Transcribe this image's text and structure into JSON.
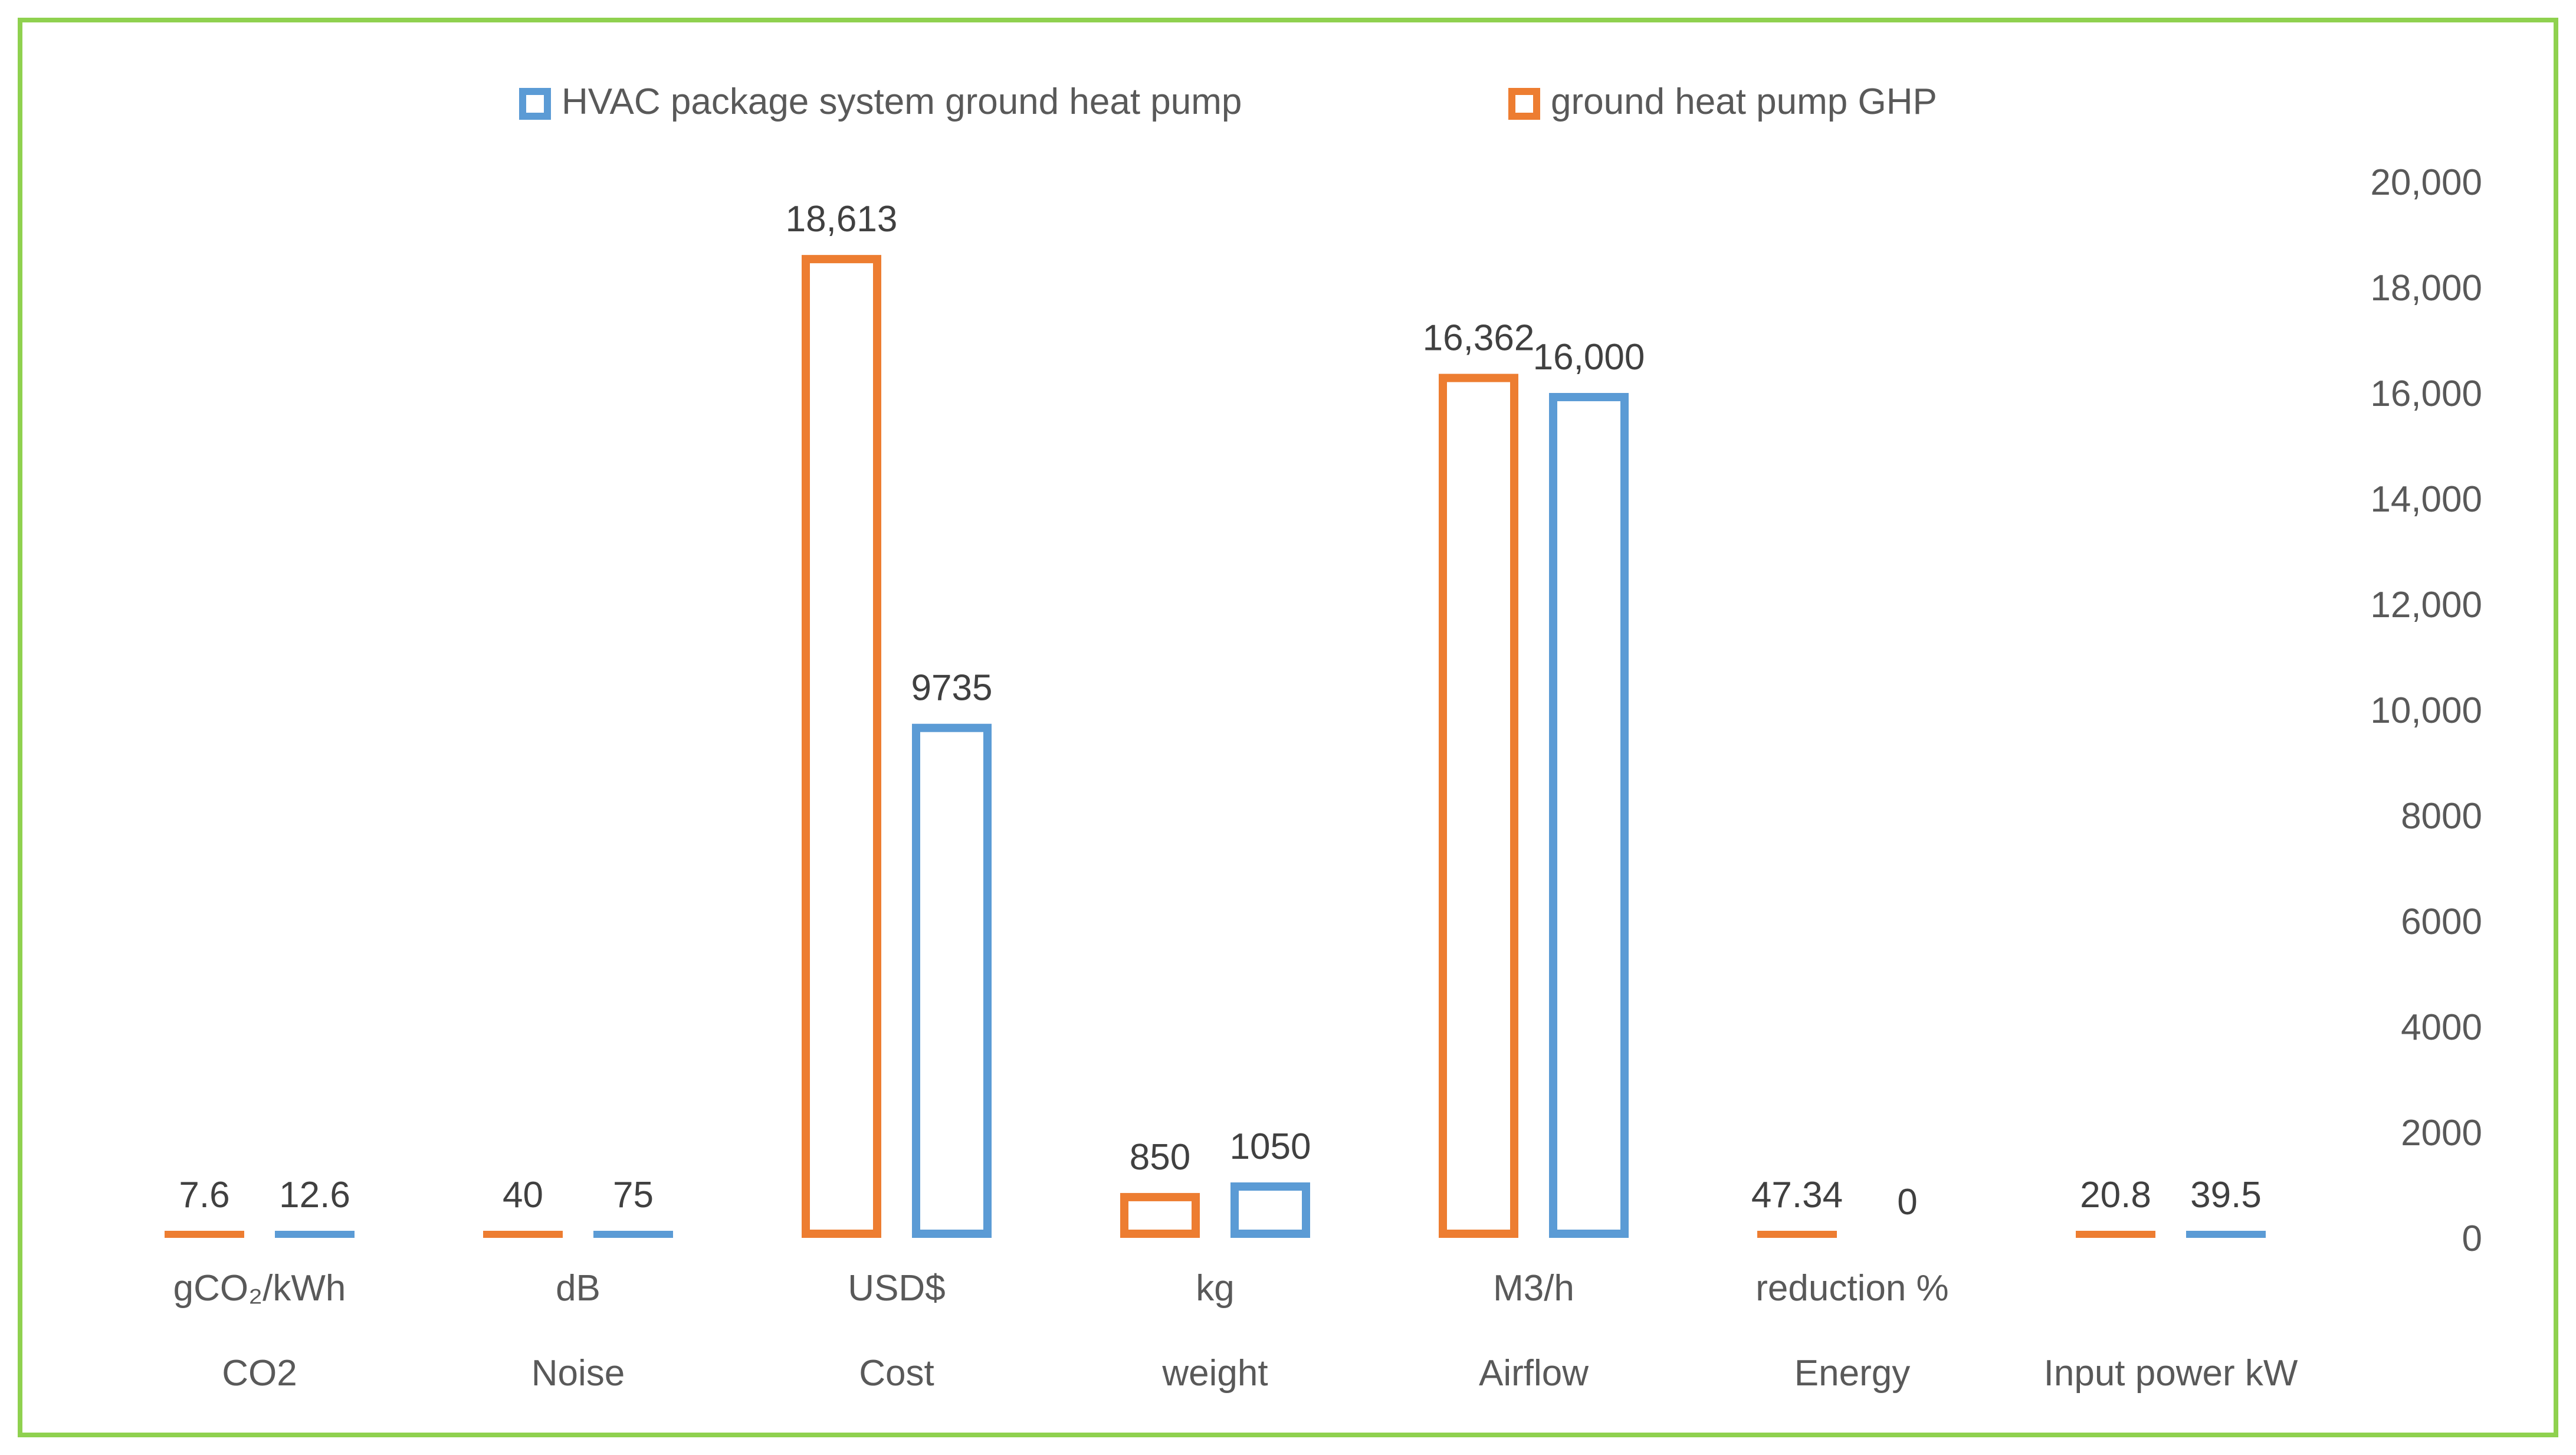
{
  "chart_data": {
    "type": "bar",
    "title": "",
    "xlabel": "",
    "ylabel": "",
    "ylim": [
      0,
      20000
    ],
    "y_ticks": [
      {
        "value": 0,
        "label": "0"
      },
      {
        "value": 2000,
        "label": "2000"
      },
      {
        "value": 4000,
        "label": "4000"
      },
      {
        "value": 6000,
        "label": "6000"
      },
      {
        "value": 8000,
        "label": "8000"
      },
      {
        "value": 10000,
        "label": "10,000"
      },
      {
        "value": 12000,
        "label": "12,000"
      },
      {
        "value": 14000,
        "label": "14,000"
      },
      {
        "value": 16000,
        "label": "16,000"
      },
      {
        "value": 18000,
        "label": "18,000"
      },
      {
        "value": 20000,
        "label": "20,000"
      }
    ],
    "categories": [
      "CO2",
      "Noise",
      "Cost",
      "weight",
      "Airflow",
      "Energy",
      "Input power kW"
    ],
    "units": [
      "gCO₂/kWh",
      "dB",
      "USD$",
      "kg",
      "M3/h",
      "reduction %",
      ""
    ],
    "series": [
      {
        "name": "ground heat pump GHP",
        "color": "#ed7d31",
        "values": [
          7.6,
          40,
          18613,
          850,
          16362,
          47.34,
          20.8
        ],
        "labels": [
          "7.6",
          "40",
          "18,613",
          "850",
          "16,362",
          "47.34",
          "20.8"
        ]
      },
      {
        "name": "HVAC package system ground heat pump",
        "color": "#5b9bd5",
        "values": [
          12.6,
          75,
          9735,
          1050,
          16000,
          0,
          39.5
        ],
        "labels": [
          "12.6",
          "75",
          "9735",
          "1050",
          "16,000",
          "0",
          "39.5"
        ]
      }
    ],
    "legend": {
      "placement": "top-center",
      "items": [
        {
          "name": "HVAC package system ground heat pump",
          "color": "#5b9bd5"
        },
        {
          "name": "ground heat pump GHP",
          "color": "#ed7d31"
        }
      ]
    },
    "y_axis_side": "right",
    "grid": false
  }
}
